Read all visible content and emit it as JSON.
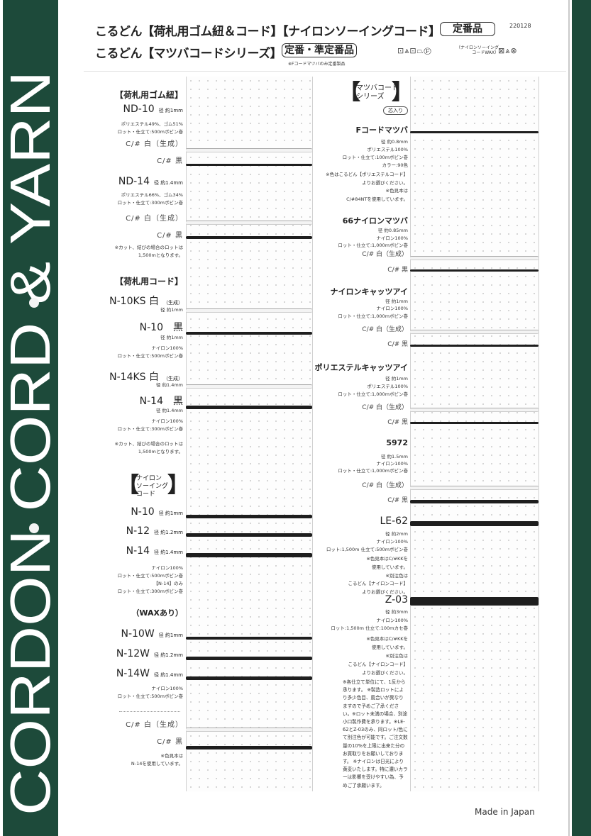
{
  "brand_band": {
    "text": "CORDON CORD & YARN",
    "color": "#1d4a3a"
  },
  "header": {
    "line1": "こるどん【荷札用ゴム紐＆コード】【ナイロンソーイングコード】",
    "badge1": "定番品",
    "code": "220128",
    "line2": "こるどん【マツバコードシリーズ】",
    "badge2": "定番・準定番品",
    "badge2_note": "※Fコードマツバのみ定番製品",
    "care_icons_1": "⊡⩓⊡⏢Ⓕ",
    "care_note": [
      "（ナイロンソーイング",
      "コードWAX）"
    ],
    "care_icons_2": "⊠⩓⊗"
  },
  "left": {
    "lines": [
      {
        "k": "heading",
        "t": "【荷札用ゴム紐】"
      },
      {
        "k": "model",
        "t": "ND-10",
        "sub": "径 約1mm"
      },
      {
        "k": "small",
        "t": "ポリエステル49%、ゴム51%"
      },
      {
        "k": "small",
        "t": "ロット・仕立て:500mボビン巻"
      },
      {
        "k": "color",
        "t": "C/# 白（生成）"
      },
      {
        "k": "color",
        "t": "C/# 黒"
      },
      {
        "k": "model",
        "t": "ND-14",
        "sub": "径 約1.4mm"
      },
      {
        "k": "small",
        "t": "ポリエステル66%、ゴム34%"
      },
      {
        "k": "small",
        "t": "ロット・仕立て:300mボビン巻"
      },
      {
        "k": "color",
        "t": "C/# 白（生成）"
      },
      {
        "k": "color",
        "t": "C/# 黒"
      },
      {
        "k": "small",
        "t": "※カット、結びの場合のロットは"
      },
      {
        "k": "small",
        "t": "1,500mとなります。"
      },
      {
        "k": "heading",
        "t": "【荷札用コード】"
      },
      {
        "k": "model",
        "t": "N-10KS 白",
        "sub": "（生成）"
      },
      {
        "k": "small",
        "t": "径 約1mm"
      },
      {
        "k": "model",
        "t": "N-10　黒"
      },
      {
        "k": "small",
        "t": "径 約1mm"
      },
      {
        "k": "small",
        "t": "ナイロン100%"
      },
      {
        "k": "small",
        "t": "ロット・仕立て:500mボビン巻"
      },
      {
        "k": "model",
        "t": "N-14KS 白",
        "sub": "（生成）"
      },
      {
        "k": "small",
        "t": "径 約1.4mm"
      },
      {
        "k": "model",
        "t": "N-14　黒"
      },
      {
        "k": "small",
        "t": "径 約1.4mm"
      },
      {
        "k": "small",
        "t": "ナイロン100%"
      },
      {
        "k": "small",
        "t": "ロット・仕立て:300mボビン巻"
      },
      {
        "k": "small",
        "t": "※カット、結びの場合のロットは"
      },
      {
        "k": "small",
        "t": "1,500mとなります。"
      },
      {
        "k": "model",
        "t": "N-10",
        "sub": "径 約1mm"
      },
      {
        "k": "model",
        "t": "N-12",
        "sub": "径 約1.2mm"
      },
      {
        "k": "model",
        "t": "N-14",
        "sub": "径 約1.4mm"
      },
      {
        "k": "small",
        "t": "ナイロン100%"
      },
      {
        "k": "small",
        "t": "ロット・仕立て:500mボビン巻"
      },
      {
        "k": "small",
        "t": "【N-14】のみ"
      },
      {
        "k": "small",
        "t": "ロット・仕立て:300mボビン巻"
      },
      {
        "k": "bold",
        "t": "（WAXあり）"
      },
      {
        "k": "model",
        "t": "N-10W",
        "sub": "径 約1mm"
      },
      {
        "k": "model",
        "t": "N-12W",
        "sub": "径 約1.2mm"
      },
      {
        "k": "model",
        "t": "N-14W",
        "sub": "径 約1.4mm"
      },
      {
        "k": "small",
        "t": "ナイロン100%"
      },
      {
        "k": "small",
        "t": "ロット・仕立て:500mボビン巻"
      },
      {
        "k": "color",
        "t": "C/# 白（生成）"
      },
      {
        "k": "color",
        "t": "C/# 黒"
      },
      {
        "k": "small",
        "t": "※色見本は"
      },
      {
        "k": "small",
        "t": "N-14を使用しています。"
      }
    ],
    "sewing_heading": [
      "ナイロン",
      "ソーイング",
      "コード"
    ],
    "cords": [
      "white",
      "black",
      "white",
      "black",
      "white",
      "black",
      "white",
      "black",
      "black",
      "black",
      "black",
      "black",
      "black",
      "black",
      "white",
      "black"
    ]
  },
  "right": {
    "heading": [
      "マツバコード",
      "シリーズ"
    ],
    "pill": "芯入り",
    "lines": [
      {
        "k": "bold",
        "t": "Fコードマツバ"
      },
      {
        "k": "small",
        "t": "径 約0.8mm"
      },
      {
        "k": "small",
        "t": "ポリエステル100%"
      },
      {
        "k": "small",
        "t": "ロット・仕立て:100mボビン巻"
      },
      {
        "k": "small",
        "t": "カラー:90色"
      },
      {
        "k": "small",
        "t": "※色はこるどん【ポリエステルコード】"
      },
      {
        "k": "small",
        "t": "よりお選びください。"
      },
      {
        "k": "small",
        "t": "※色見本は"
      },
      {
        "k": "small",
        "t": "C/#84NTを使用しています。"
      },
      {
        "k": "bold",
        "t": "66ナイロンマツバ"
      },
      {
        "k": "small",
        "t": "径 約0.85mm"
      },
      {
        "k": "small",
        "t": "ナイロン100%"
      },
      {
        "k": "small",
        "t": "ロット・仕立て:1,000mボビン巻"
      },
      {
        "k": "color2",
        "t": "C/# 白（生成）"
      },
      {
        "k": "color2",
        "t": "C/# 黒"
      },
      {
        "k": "bold",
        "t": "ナイロンキャッツアイ"
      },
      {
        "k": "small",
        "t": "径 約1mm"
      },
      {
        "k": "small",
        "t": "ナイロン100%"
      },
      {
        "k": "small",
        "t": "ロット・仕立て:1,000mボビン巻"
      },
      {
        "k": "color2",
        "t": "C/# 白（生成）"
      },
      {
        "k": "color2",
        "t": "C/# 黒"
      },
      {
        "k": "bold",
        "t": "ポリエステルキャッツアイ"
      },
      {
        "k": "small",
        "t": "径 約1mm"
      },
      {
        "k": "small",
        "t": "ポリエステル100%"
      },
      {
        "k": "small",
        "t": "ロット・仕立て:1,000mボビン巻"
      },
      {
        "k": "color2",
        "t": "C/# 白（生成）"
      },
      {
        "k": "color2",
        "t": "C/# 黒"
      },
      {
        "k": "bold",
        "t": "5972"
      },
      {
        "k": "small",
        "t": "径 約1.5mm"
      },
      {
        "k": "small",
        "t": "ナイロン100%"
      },
      {
        "k": "small",
        "t": "ロット・仕立て:1,000mボビン巻"
      },
      {
        "k": "color2",
        "t": "C/# 白（生成）"
      },
      {
        "k": "color2",
        "t": "C/# 黒"
      },
      {
        "k": "model",
        "t": "LE-62"
      },
      {
        "k": "small",
        "t": "径 約2mm"
      },
      {
        "k": "small",
        "t": "ナイロン100%"
      },
      {
        "k": "small",
        "t": "ロット:1,500m 仕立て:500mボビン巻"
      },
      {
        "k": "small",
        "t": "※色見本はC/#KKを"
      },
      {
        "k": "small",
        "t": "使用しています。"
      },
      {
        "k": "small",
        "t": "※別注色は"
      },
      {
        "k": "small",
        "t": "こるどん【ナイロンコード】"
      },
      {
        "k": "small",
        "t": "よりお選びください。"
      },
      {
        "k": "model",
        "t": "Z-03"
      },
      {
        "k": "small",
        "t": "径 約3mm"
      },
      {
        "k": "small",
        "t": "ナイロン100%"
      },
      {
        "k": "small",
        "t": "ロット:1,500m 仕立て:100mカセ巻"
      },
      {
        "k": "small",
        "t": "※色見本はC/#KKを"
      },
      {
        "k": "small",
        "t": "使用しています。"
      },
      {
        "k": "small",
        "t": "※別注色は"
      },
      {
        "k": "small",
        "t": "こるどん【ナイロンコード】"
      },
      {
        "k": "small",
        "t": "よりお選びください。"
      }
    ],
    "cords": [
      "black",
      "white",
      "black",
      "white",
      "black",
      "white",
      "black",
      "white",
      "black",
      "black",
      "black"
    ],
    "notes": "※各仕立て単位にて、1反から承ります。 ※製造ロットにより多少色目、風合いが異なりますので予めご了承ください。※ロット未満の場合、別途小口製作費を承ります。※LE-62とZ-03のみ、同ロット/色にて別注色が可能です。ご注文数量の10%を上限に出来た分のお買取りをお願いしております。 ※ナイロンは日光により黄変いたします。特に濃いカラーは影響を受けやすい為、予めご了承願います。"
  },
  "footer": {
    "made_in": "Made in Japan"
  }
}
